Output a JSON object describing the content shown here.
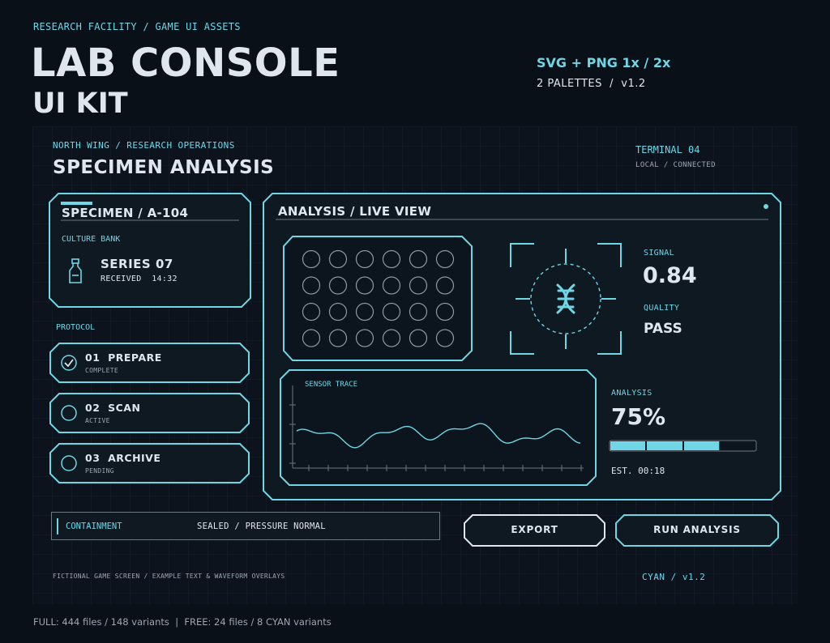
{
  "header": {
    "crumb": "RESEARCH FACILITY / GAME UI ASSETS",
    "title_line1": "LAB CONSOLE",
    "title_line2": "UI KIT",
    "formats": "SVG + PNG 1x / 2x",
    "palettes": "2 PALETTES  /  v1.2"
  },
  "screen": {
    "breadcrumb": "NORTH WING / RESEARCH OPERATIONS",
    "title": "SPECIMEN ANALYSIS",
    "terminal": "TERMINAL 04",
    "terminal_status": "LOCAL / CONNECTED"
  },
  "specimen": {
    "title": "SPECIMEN / A-104",
    "culture_label": "CULTURE BANK",
    "series": "SERIES 07",
    "received": "RECEIVED  14:32",
    "icon": "vial-icon"
  },
  "protocol": {
    "label": "PROTOCOL",
    "steps": [
      {
        "title": "01  PREPARE",
        "status": "COMPLETE",
        "icon": "check-circle-icon"
      },
      {
        "title": "02  SCAN",
        "status": "ACTIVE",
        "icon": "circle-icon"
      },
      {
        "title": "03  ARCHIVE",
        "status": "PENDING",
        "icon": "circle-icon"
      }
    ]
  },
  "analysis": {
    "title": "ANALYSIS / LIVE VIEW",
    "signal_label": "SIGNAL",
    "signal_value": "0.84",
    "quality_label": "QUALITY",
    "quality_value": "PASS",
    "sensor_label": "SENSOR TRACE",
    "progress_label": "ANALYSIS",
    "progress_value": "75%",
    "progress_fraction": 0.75,
    "eta": "EST. 00:18",
    "target_icon": "dna-target-icon"
  },
  "containment": {
    "label": "CONTAINMENT",
    "status": "SEALED / PRESSURE NORMAL"
  },
  "buttons": {
    "export": "EXPORT",
    "run": "RUN ANALYSIS"
  },
  "footer": {
    "note": "FICTIONAL GAME SCREEN / EXAMPLE TEXT & WAVEFORM OVERLAYS",
    "variant": "CYAN / v1.2",
    "files": "FULL: 444 files / 148 variants  |  FREE: 24 files / 8 CYAN variants"
  },
  "colors": {
    "accent": "#6fd6e6",
    "background": "#0a1018",
    "text": "#dfe6ee"
  }
}
